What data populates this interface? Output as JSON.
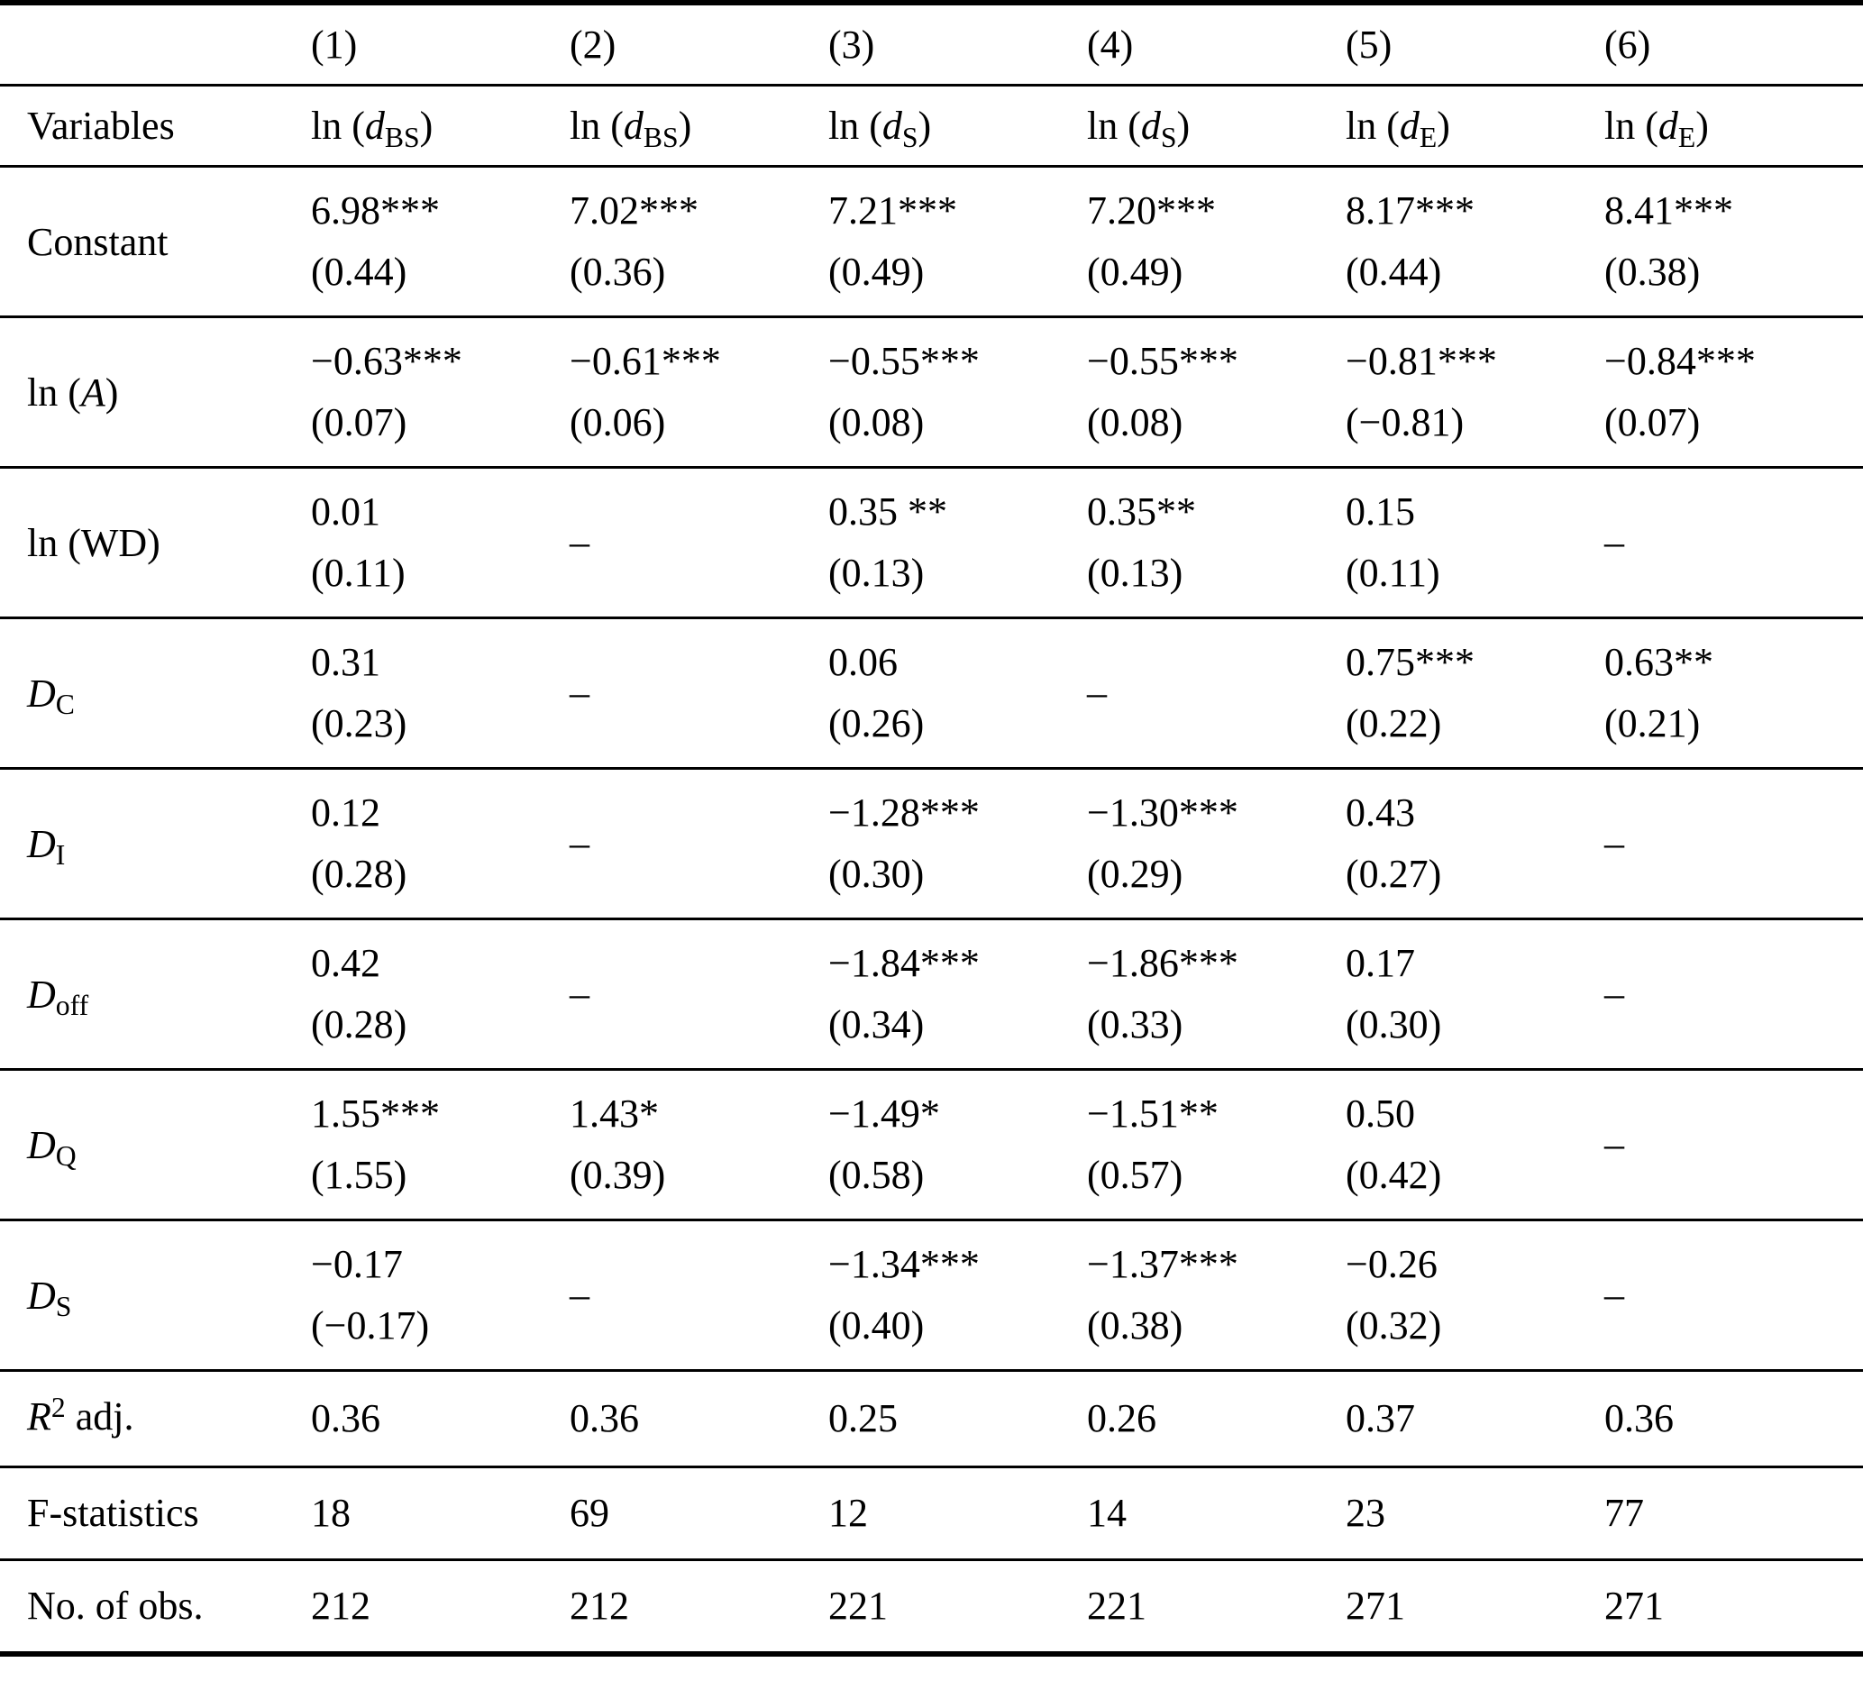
{
  "table": {
    "header": {
      "model_numbers": [
        "(1)",
        "(2)",
        "(3)",
        "(4)",
        "(5)",
        "(6)"
      ],
      "variables_label": "Variables",
      "dependent_vars": [
        [
          {
            "t": "ln (",
            "s": "n"
          },
          {
            "t": "d",
            "s": "i"
          },
          {
            "t": "BS",
            "s": "sub"
          },
          {
            "t": ")",
            "s": "n"
          }
        ],
        [
          {
            "t": "ln (",
            "s": "n"
          },
          {
            "t": "d",
            "s": "i"
          },
          {
            "t": "BS",
            "s": "sub"
          },
          {
            "t": ")",
            "s": "n"
          }
        ],
        [
          {
            "t": "ln (",
            "s": "n"
          },
          {
            "t": "d",
            "s": "i"
          },
          {
            "t": "S",
            "s": "sub"
          },
          {
            "t": ")",
            "s": "n"
          }
        ],
        [
          {
            "t": "ln (",
            "s": "n"
          },
          {
            "t": "d",
            "s": "i"
          },
          {
            "t": "S",
            "s": "sub"
          },
          {
            "t": ")",
            "s": "n"
          }
        ],
        [
          {
            "t": "ln (",
            "s": "n"
          },
          {
            "t": "d",
            "s": "i"
          },
          {
            "t": "E",
            "s": "sub"
          },
          {
            "t": ")",
            "s": "n"
          }
        ],
        [
          {
            "t": "ln (",
            "s": "n"
          },
          {
            "t": "d",
            "s": "i"
          },
          {
            "t": "E",
            "s": "sub"
          },
          {
            "t": ")",
            "s": "n"
          }
        ]
      ]
    },
    "rows": [
      {
        "name": "constant",
        "label": [
          {
            "t": "Constant",
            "s": "n"
          }
        ],
        "cells": [
          [
            "6.98***",
            "(0.44)"
          ],
          [
            "7.02***",
            "(0.36)"
          ],
          [
            "7.21***",
            "(0.49)"
          ],
          [
            "7.20***",
            "(0.49)"
          ],
          [
            "8.17***",
            "(0.44)"
          ],
          [
            "8.41***",
            "(0.38)"
          ]
        ]
      },
      {
        "name": "ln-A",
        "label": [
          {
            "t": "ln (",
            "s": "n"
          },
          {
            "t": "A",
            "s": "i"
          },
          {
            "t": ")",
            "s": "n"
          }
        ],
        "cells": [
          [
            "−0.63***",
            "(0.07)"
          ],
          [
            "−0.61***",
            "(0.06)"
          ],
          [
            "−0.55***",
            "(0.08)"
          ],
          [
            "−0.55***",
            "(0.08)"
          ],
          [
            "−0.81***",
            "(−0.81)"
          ],
          [
            "−0.84***",
            "(0.07)"
          ]
        ]
      },
      {
        "name": "ln-WD",
        "label": [
          {
            "t": "ln (WD)",
            "s": "n"
          }
        ],
        "cells": [
          [
            "0.01",
            "(0.11)"
          ],
          [
            "–"
          ],
          [
            "0.35 **",
            "(0.13)"
          ],
          [
            "0.35**",
            "(0.13)"
          ],
          [
            "0.15",
            "(0.11)"
          ],
          [
            "–"
          ]
        ]
      },
      {
        "name": "D-C",
        "label": [
          {
            "t": "D",
            "s": "i"
          },
          {
            "t": "C",
            "s": "sub"
          }
        ],
        "cells": [
          [
            "0.31",
            "(0.23)"
          ],
          [
            "–"
          ],
          [
            "0.06",
            "(0.26)"
          ],
          [
            "–"
          ],
          [
            "0.75***",
            "(0.22)"
          ],
          [
            "0.63**",
            "(0.21)"
          ]
        ]
      },
      {
        "name": "D-I",
        "label": [
          {
            "t": "D",
            "s": "i"
          },
          {
            "t": "I",
            "s": "sub"
          }
        ],
        "cells": [
          [
            "0.12",
            "(0.28)"
          ],
          [
            "–"
          ],
          [
            "−1.28***",
            "(0.30)"
          ],
          [
            "−1.30***",
            "(0.29)"
          ],
          [
            "0.43",
            "(0.27)"
          ],
          [
            "–"
          ]
        ]
      },
      {
        "name": "D-off",
        "label": [
          {
            "t": "D",
            "s": "i"
          },
          {
            "t": "off",
            "s": "sub"
          }
        ],
        "cells": [
          [
            "0.42",
            "(0.28)"
          ],
          [
            "–"
          ],
          [
            "−1.84***",
            "(0.34)"
          ],
          [
            "−1.86***",
            "(0.33)"
          ],
          [
            "0.17",
            "(0.30)"
          ],
          [
            "–"
          ]
        ]
      },
      {
        "name": "D-Q",
        "label": [
          {
            "t": "D",
            "s": "i"
          },
          {
            "t": "Q",
            "s": "sub"
          }
        ],
        "cells": [
          [
            "1.55***",
            "(1.55)"
          ],
          [
            "1.43*",
            "(0.39)"
          ],
          [
            "−1.49*",
            "(0.58)"
          ],
          [
            "−1.51**",
            "(0.57)"
          ],
          [
            "0.50",
            "(0.42)"
          ],
          [
            "–"
          ]
        ]
      },
      {
        "name": "D-S",
        "label": [
          {
            "t": "D",
            "s": "i"
          },
          {
            "t": "S",
            "s": "sub"
          }
        ],
        "cells": [
          [
            "−0.17",
            "(−0.17)"
          ],
          [
            "–"
          ],
          [
            "−1.34***",
            "(0.40)"
          ],
          [
            "−1.37***",
            "(0.38)"
          ],
          [
            "−0.26",
            "(0.32)"
          ],
          [
            "–"
          ]
        ]
      }
    ],
    "stats": [
      {
        "name": "r2-adj",
        "label": [
          {
            "t": "R",
            "s": "i"
          },
          {
            "t": "2",
            "s": "sup"
          },
          {
            "t": " adj.",
            "s": "n"
          }
        ],
        "values": [
          "0.36",
          "0.36",
          "0.25",
          "0.26",
          "0.37",
          "0.36"
        ]
      },
      {
        "name": "f-statistics",
        "label": [
          {
            "t": "F-statistics",
            "s": "n"
          }
        ],
        "values": [
          "18",
          "69",
          "12",
          "14",
          "23",
          "77"
        ]
      },
      {
        "name": "no-of-obs",
        "label": [
          {
            "t": "No. of obs.",
            "s": "n"
          }
        ],
        "values": [
          "212",
          "212",
          "221",
          "221",
          "271",
          "271"
        ]
      }
    ]
  }
}
